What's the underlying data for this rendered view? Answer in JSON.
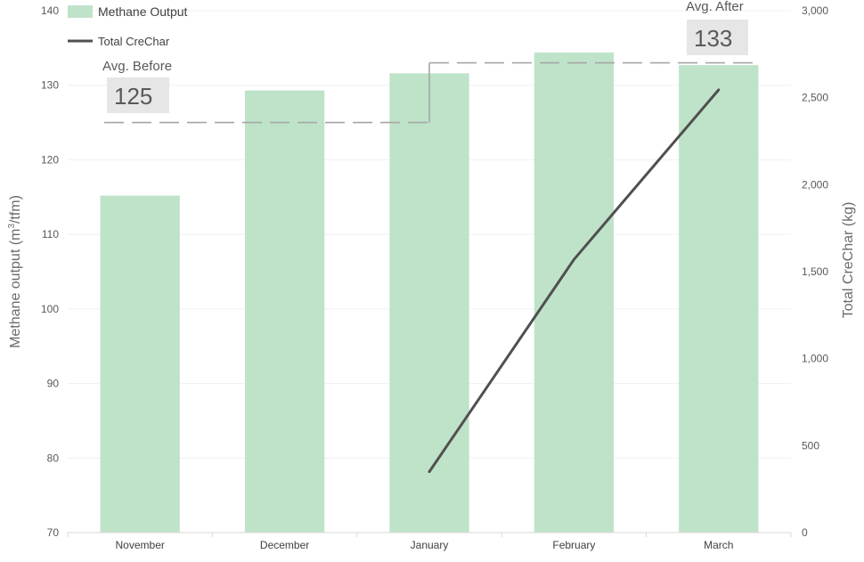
{
  "chart_data": {
    "type": "bar",
    "categories": [
      "November",
      "December",
      "January",
      "February",
      "March"
    ],
    "series": [
      {
        "name": "Methane Output",
        "type": "bar",
        "axis": "left",
        "color": "#bfe3c9",
        "values": [
          115.2,
          129.3,
          131.6,
          134.4,
          132.7
        ]
      },
      {
        "name": "Total CreChar",
        "type": "line",
        "axis": "right",
        "color": "#505050",
        "values": [
          null,
          null,
          350,
          1570,
          2545
        ]
      }
    ],
    "left_axis": {
      "label_main": "Methane output  (m",
      "label_sup": "3",
      "label_tail": "/tfm)",
      "range": [
        70,
        140
      ],
      "ticks": [
        70,
        80,
        90,
        100,
        110,
        120,
        130,
        140
      ],
      "tick_labels": [
        "70",
        "80",
        "90",
        "100",
        "110",
        "120",
        "130",
        "140"
      ]
    },
    "right_axis": {
      "label": "Total CreChar (kg)",
      "range": [
        0,
        3000
      ],
      "ticks": [
        0,
        500,
        1000,
        1500,
        2000,
        2500,
        3000
      ],
      "tick_labels": [
        "0",
        "500",
        "1,000",
        "1,500",
        "2,000",
        "2,500",
        "3,000"
      ]
    },
    "reference_lines": [
      {
        "label": "Avg. Before",
        "value": 125,
        "value_label": "125",
        "from_category": 0,
        "to_category": 2
      },
      {
        "label": "Avg. After",
        "value": 133,
        "value_label": "133",
        "from_category": 2,
        "to_category": 4
      }
    ],
    "legend": {
      "placement": "top-left"
    },
    "grid": true
  }
}
